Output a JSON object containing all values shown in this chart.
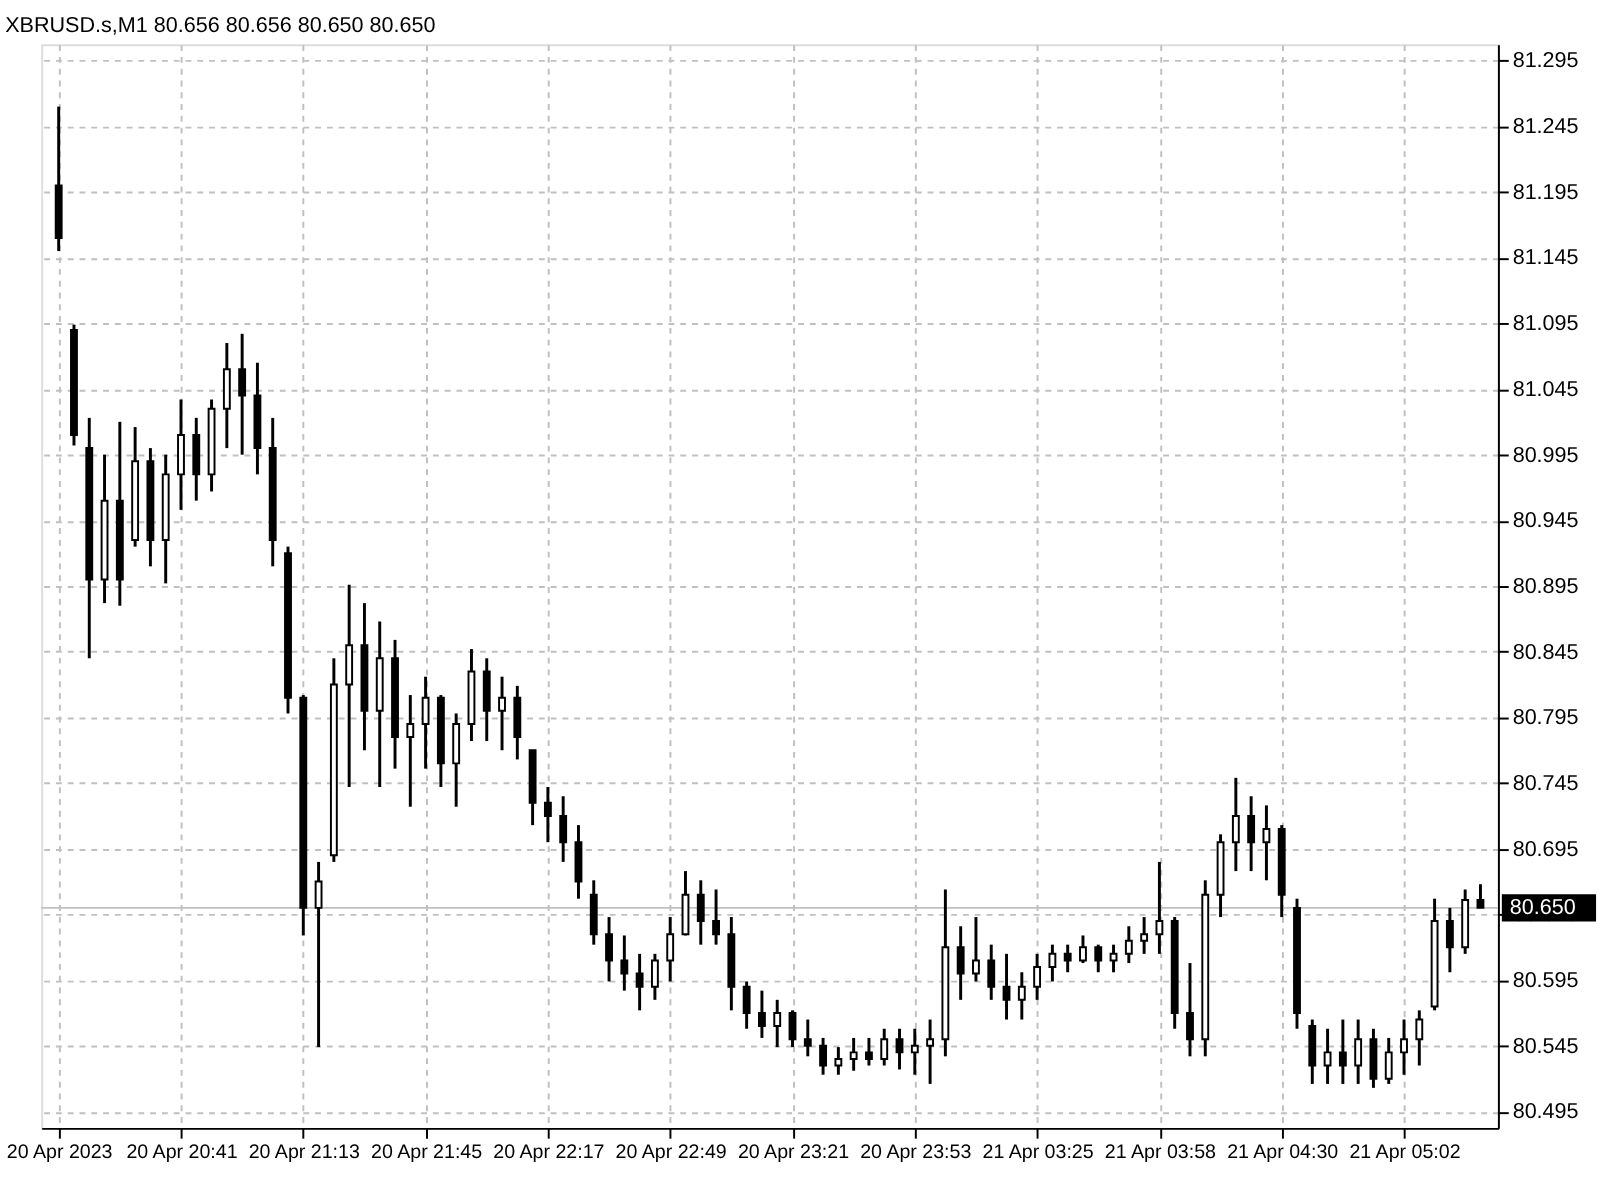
{
  "chart_data": {
    "type": "candlestick",
    "title": "XBRUSD.s,M1  80.656 80.656 80.650 80.650",
    "color": "#000000",
    "categories": [
      "20 Apr 2023",
      null,
      null,
      null,
      null,
      null,
      null,
      null,
      "20 Apr 20:41",
      null,
      null,
      null,
      null,
      null,
      null,
      null,
      "20 Apr 21:13",
      null,
      null,
      null,
      null,
      null,
      null,
      null,
      "20 Apr 21:45",
      null,
      null,
      null,
      null,
      null,
      null,
      null,
      "20 Apr 22:17",
      null,
      null,
      null,
      null,
      null,
      null,
      null,
      "20 Apr 22:49",
      null,
      null,
      null,
      null,
      null,
      null,
      null,
      "20 Apr 23:21",
      null,
      null,
      null,
      null,
      null,
      null,
      null,
      "20 Apr 23:53",
      null,
      null,
      null,
      null,
      null,
      null,
      null,
      "21 Apr 03:25",
      null,
      null,
      null,
      null,
      null,
      null,
      null,
      "21 Apr 03:58",
      null,
      null,
      null,
      null,
      null,
      null,
      null,
      "21 Apr 04:30",
      null,
      null,
      null,
      null,
      null,
      null,
      null,
      "21 Apr 05:02",
      null,
      null,
      null,
      null,
      null
    ],
    "ohlc": [
      [
        81.2,
        81.26,
        81.15,
        81.16
      ],
      [
        81.09,
        81.094,
        81.002,
        81.01
      ],
      [
        81.0,
        81.023,
        80.84,
        80.9
      ],
      [
        80.9,
        80.995,
        80.882,
        80.96
      ],
      [
        80.96,
        81.02,
        80.88,
        80.9
      ],
      [
        80.93,
        81.016,
        80.925,
        80.99
      ],
      [
        80.99,
        81.0,
        80.91,
        80.93
      ],
      [
        80.93,
        80.995,
        80.897,
        80.98
      ],
      [
        80.98,
        81.037,
        80.953,
        81.01
      ],
      [
        81.01,
        81.023,
        80.96,
        80.98
      ],
      [
        80.98,
        81.037,
        80.967,
        81.03
      ],
      [
        81.03,
        81.08,
        81.0,
        81.06
      ],
      [
        81.06,
        81.087,
        80.995,
        81.04
      ],
      [
        81.04,
        81.065,
        80.98,
        81.0
      ],
      [
        81.0,
        81.023,
        80.91,
        80.93
      ],
      [
        80.92,
        80.925,
        80.798,
        80.81
      ],
      [
        80.81,
        80.812,
        80.629,
        80.65
      ],
      [
        80.65,
        80.685,
        80.544,
        80.67
      ],
      [
        80.69,
        80.84,
        80.685,
        80.82
      ],
      [
        80.82,
        80.896,
        80.742,
        80.85
      ],
      [
        80.85,
        80.882,
        80.77,
        80.8
      ],
      [
        80.8,
        80.868,
        80.742,
        80.84
      ],
      [
        80.84,
        80.854,
        80.756,
        80.78
      ],
      [
        80.78,
        80.812,
        80.727,
        80.79
      ],
      [
        80.79,
        80.826,
        80.756,
        80.81
      ],
      [
        80.81,
        80.812,
        80.742,
        80.76
      ],
      [
        80.76,
        80.798,
        80.727,
        80.79
      ],
      [
        80.79,
        80.847,
        80.777,
        80.83
      ],
      [
        80.83,
        80.84,
        80.777,
        80.8
      ],
      [
        80.8,
        80.826,
        80.77,
        80.81
      ],
      [
        80.81,
        80.819,
        80.763,
        80.78
      ],
      [
        80.77,
        80.77,
        80.713,
        80.73
      ],
      [
        80.73,
        80.742,
        80.7,
        80.72
      ],
      [
        80.72,
        80.735,
        80.685,
        80.7
      ],
      [
        80.7,
        80.713,
        80.657,
        80.67
      ],
      [
        80.66,
        80.671,
        80.622,
        80.63
      ],
      [
        80.63,
        80.643,
        80.594,
        80.61
      ],
      [
        80.61,
        80.629,
        80.587,
        80.6
      ],
      [
        80.6,
        80.615,
        80.572,
        80.59
      ],
      [
        80.59,
        80.615,
        80.58,
        80.61
      ],
      [
        80.61,
        80.643,
        80.594,
        80.63
      ],
      [
        80.63,
        80.678,
        80.629,
        80.66
      ],
      [
        80.66,
        80.671,
        80.622,
        80.64
      ],
      [
        80.64,
        80.664,
        80.622,
        80.63
      ],
      [
        80.63,
        80.643,
        80.572,
        80.59
      ],
      [
        80.59,
        80.594,
        80.558,
        80.57
      ],
      [
        80.57,
        80.587,
        80.551,
        80.56
      ],
      [
        80.56,
        80.58,
        80.544,
        80.57
      ],
      [
        80.57,
        80.572,
        80.544,
        80.55
      ],
      [
        80.55,
        80.565,
        80.537,
        80.545
      ],
      [
        80.545,
        80.551,
        80.523,
        80.53
      ],
      [
        80.53,
        80.544,
        80.523,
        80.535
      ],
      [
        80.535,
        80.551,
        80.526,
        80.54
      ],
      [
        80.54,
        80.551,
        80.53,
        80.535
      ],
      [
        80.535,
        80.558,
        80.53,
        80.55
      ],
      [
        80.55,
        80.558,
        80.527,
        80.54
      ],
      [
        80.54,
        80.558,
        80.523,
        80.545
      ],
      [
        80.545,
        80.565,
        80.516,
        80.55
      ],
      [
        80.55,
        80.664,
        80.537,
        80.62
      ],
      [
        80.62,
        80.636,
        80.58,
        80.6
      ],
      [
        80.6,
        80.643,
        80.594,
        80.61
      ],
      [
        80.61,
        80.622,
        80.58,
        80.59
      ],
      [
        80.59,
        80.615,
        80.565,
        80.58
      ],
      [
        80.58,
        80.601,
        80.565,
        80.59
      ],
      [
        80.59,
        80.615,
        80.58,
        80.605
      ],
      [
        80.605,
        80.622,
        80.594,
        80.615
      ],
      [
        80.615,
        80.622,
        80.601,
        80.61
      ],
      [
        80.61,
        80.629,
        80.608,
        80.62
      ],
      [
        80.62,
        80.622,
        80.601,
        80.61
      ],
      [
        80.61,
        80.622,
        80.601,
        80.615
      ],
      [
        80.615,
        80.636,
        80.608,
        80.625
      ],
      [
        80.625,
        80.643,
        80.615,
        80.63
      ],
      [
        80.63,
        80.685,
        80.615,
        80.64
      ],
      [
        80.64,
        80.643,
        80.558,
        80.57
      ],
      [
        80.57,
        80.608,
        80.537,
        80.55
      ],
      [
        80.55,
        80.671,
        80.537,
        80.66
      ],
      [
        80.66,
        80.706,
        80.643,
        80.7
      ],
      [
        80.7,
        80.749,
        80.678,
        80.72
      ],
      [
        80.72,
        80.735,
        80.678,
        80.7
      ],
      [
        80.7,
        80.728,
        80.671,
        80.71
      ],
      [
        80.71,
        80.713,
        80.643,
        80.66
      ],
      [
        80.65,
        80.657,
        80.558,
        80.57
      ],
      [
        80.56,
        80.565,
        80.516,
        80.53
      ],
      [
        80.53,
        80.558,
        80.516,
        80.54
      ],
      [
        80.54,
        80.565,
        80.516,
        80.53
      ],
      [
        80.53,
        80.565,
        80.516,
        80.55
      ],
      [
        80.55,
        80.558,
        80.513,
        80.52
      ],
      [
        80.52,
        80.551,
        80.516,
        80.54
      ],
      [
        80.54,
        80.565,
        80.523,
        80.55
      ],
      [
        80.55,
        80.572,
        80.53,
        80.565
      ],
      [
        80.575,
        80.657,
        80.572,
        80.64
      ],
      [
        80.64,
        80.65,
        80.601,
        80.62
      ],
      [
        80.62,
        80.664,
        80.615,
        80.656
      ],
      [
        80.656,
        80.668,
        80.65,
        80.65
      ]
    ],
    "ylim": [
      80.49,
      81.3
    ],
    "yticks": [
      80.495,
      80.545,
      80.595,
      80.645,
      80.695,
      80.745,
      80.795,
      80.845,
      80.895,
      80.945,
      80.995,
      81.045,
      81.095,
      81.145,
      81.195,
      81.245,
      81.295
    ],
    "ref_lines": [
      {
        "axis": "y",
        "value": 80.65,
        "label": "80.650",
        "color": "#c0c0c0"
      }
    ],
    "grid": true
  }
}
